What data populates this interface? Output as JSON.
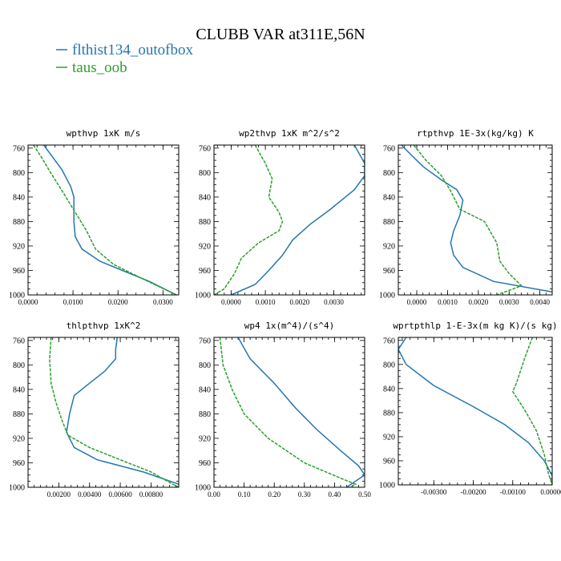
{
  "figure": {
    "title": "CLUBB VAR at311E,56N",
    "legend": [
      {
        "name": "flthist134_outofbox",
        "color": "#2576b0"
      },
      {
        "name": "taus_oob",
        "color": "#2aa02b"
      }
    ]
  },
  "chart_data": [
    {
      "type": "line",
      "title": "wpthvp   1xK m/s",
      "y_axis": "pressure (inverted)",
      "ylim": [
        1000,
        755
      ],
      "xlim": [
        0.0,
        0.0335
      ],
      "xticks": [
        0.0,
        0.01,
        0.02,
        0.03
      ],
      "xtick_labels": [
        "0.0000",
        "0.0100",
        "0.0200",
        "0.0300"
      ],
      "yticks": [
        760,
        800,
        840,
        880,
        920,
        960,
        1000
      ],
      "series": [
        {
          "name": "flthist134_outofbox",
          "color": "#2576b0",
          "dash": "solid",
          "points": [
            [
              0.0035,
              755
            ],
            [
              0.0055,
              775
            ],
            [
              0.0075,
              795
            ],
            [
              0.0095,
              823
            ],
            [
              0.0102,
              840
            ],
            [
              0.0102,
              880
            ],
            [
              0.0105,
              905
            ],
            [
              0.012,
              925
            ],
            [
              0.016,
              945
            ],
            [
              0.021,
              960
            ],
            [
              0.027,
              978
            ],
            [
              0.033,
              1000
            ]
          ]
        },
        {
          "name": "taus_oob",
          "color": "#2aa02b",
          "dash": "dashed",
          "points": [
            [
              0.0012,
              755
            ],
            [
              0.003,
              775
            ],
            [
              0.005,
              800
            ],
            [
              0.008,
              835
            ],
            [
              0.0105,
              865
            ],
            [
              0.013,
              895
            ],
            [
              0.015,
              925
            ],
            [
              0.019,
              950
            ],
            [
              0.025,
              972
            ],
            [
              0.033,
              1000
            ]
          ]
        }
      ]
    },
    {
      "type": "line",
      "title": "wp2thvp   1xK m^2/s^2",
      "y_axis": "pressure (inverted)",
      "ylim": [
        1000,
        755
      ],
      "xlim": [
        -0.0005,
        0.0039
      ],
      "xticks": [
        0.0,
        0.001,
        0.002,
        0.003
      ],
      "xtick_labels": [
        "0.0000",
        "0.0010",
        "0.0020",
        "0.0030"
      ],
      "yticks": [
        760,
        800,
        840,
        880,
        920,
        960,
        1000
      ],
      "series": [
        {
          "name": "flthist134_outofbox",
          "color": "#2576b0",
          "dash": "solid",
          "points": [
            [
              0.0036,
              755
            ],
            [
              0.0039,
              785
            ],
            [
              0.0039,
              805
            ],
            [
              0.0036,
              828
            ],
            [
              0.0029,
              860
            ],
            [
              0.0023,
              885
            ],
            [
              0.0018,
              910
            ],
            [
              0.0015,
              935
            ],
            [
              0.0011,
              960
            ],
            [
              0.0007,
              983
            ],
            [
              0.0,
              1000
            ]
          ]
        },
        {
          "name": "taus_oob",
          "color": "#2aa02b",
          "dash": "dashed",
          "points": [
            [
              0.0007,
              755
            ],
            [
              0.001,
              785
            ],
            [
              0.0012,
              810
            ],
            [
              0.0011,
              840
            ],
            [
              0.0014,
              865
            ],
            [
              0.0015,
              880
            ],
            [
              0.0014,
              895
            ],
            [
              0.0008,
              915
            ],
            [
              0.0003,
              940
            ],
            [
              0.0001,
              965
            ],
            [
              -0.0002,
              990
            ],
            [
              -0.0005,
              1000
            ]
          ]
        }
      ]
    },
    {
      "type": "line",
      "title": "rtpthvp   1E-3x(kg/kg) K",
      "y_axis": "pressure (inverted)",
      "ylim": [
        1000,
        755
      ],
      "xlim": [
        -0.0006,
        0.0044
      ],
      "xticks": [
        0.0,
        0.001,
        0.002,
        0.003,
        0.004
      ],
      "xtick_labels": [
        "0.0000",
        "0.0010",
        "0.0020",
        "0.0030",
        "0.0040"
      ],
      "yticks": [
        760,
        800,
        840,
        880,
        920,
        960,
        1000
      ],
      "series": [
        {
          "name": "flthist134_outofbox",
          "color": "#2576b0",
          "dash": "solid",
          "points": [
            [
              -0.0005,
              755
            ],
            [
              0.0002,
              790
            ],
            [
              0.0008,
              812
            ],
            [
              0.0013,
              828
            ],
            [
              0.0015,
              845
            ],
            [
              0.0014,
              870
            ],
            [
              0.0012,
              895
            ],
            [
              0.0011,
              915
            ],
            [
              0.0012,
              935
            ],
            [
              0.0015,
              955
            ],
            [
              0.0025,
              978
            ],
            [
              0.0044,
              995
            ]
          ]
        },
        {
          "name": "taus_oob",
          "color": "#2aa02b",
          "dash": "dashed",
          "points": [
            [
              -0.0001,
              755
            ],
            [
              0.0003,
              780
            ],
            [
              0.0008,
              805
            ],
            [
              0.0011,
              830
            ],
            [
              0.0014,
              860
            ],
            [
              0.0022,
              880
            ],
            [
              0.0026,
              915
            ],
            [
              0.0027,
              945
            ],
            [
              0.003,
              965
            ],
            [
              0.0034,
              985
            ],
            [
              0.0026,
              1000
            ]
          ]
        }
      ]
    },
    {
      "type": "line",
      "title": "thlpthvp   1xK^2",
      "y_axis": "pressure (inverted)",
      "ylim": [
        1000,
        755
      ],
      "xlim": [
        0.0,
        0.0098
      ],
      "xticks": [
        0.002,
        0.004,
        0.006,
        0.008
      ],
      "xtick_labels": [
        "0.00200",
        "0.00400",
        "0.00600",
        "0.00800"
      ],
      "yticks": [
        760,
        800,
        840,
        880,
        920,
        960,
        1000
      ],
      "series": [
        {
          "name": "flthist134_outofbox",
          "color": "#2576b0",
          "dash": "solid",
          "points": [
            [
              0.0058,
              755
            ],
            [
              0.0057,
              775
            ],
            [
              0.0057,
              790
            ],
            [
              0.005,
              810
            ],
            [
              0.004,
              830
            ],
            [
              0.003,
              850
            ],
            [
              0.0027,
              880
            ],
            [
              0.0025,
              910
            ],
            [
              0.003,
              935
            ],
            [
              0.0045,
              955
            ],
            [
              0.0075,
              975
            ],
            [
              0.0098,
              995
            ]
          ]
        },
        {
          "name": "taus_oob",
          "color": "#2aa02b",
          "dash": "dashed",
          "points": [
            [
              0.0015,
              755
            ],
            [
              0.0014,
              790
            ],
            [
              0.0015,
              830
            ],
            [
              0.0018,
              860
            ],
            [
              0.0022,
              890
            ],
            [
              0.0026,
              915
            ],
            [
              0.004,
              935
            ],
            [
              0.006,
              955
            ],
            [
              0.008,
              975
            ],
            [
              0.0092,
              992
            ],
            [
              0.0098,
              1000
            ]
          ]
        }
      ]
    },
    {
      "type": "line",
      "title": "wp4   1x(m^4)/(s^4)",
      "y_axis": "pressure (inverted)",
      "ylim": [
        1000,
        755
      ],
      "xlim": [
        0.0,
        0.5
      ],
      "xticks": [
        0.0,
        0.1,
        0.2,
        0.3,
        0.4,
        0.5
      ],
      "xtick_labels": [
        "0.00",
        "0.10",
        "0.20",
        "0.30",
        "0.40",
        "0.50"
      ],
      "yticks": [
        760,
        800,
        840,
        880,
        920,
        960,
        1000
      ],
      "series": [
        {
          "name": "flthist134_outofbox",
          "color": "#2576b0",
          "dash": "solid",
          "points": [
            [
              0.08,
              755
            ],
            [
              0.12,
              790
            ],
            [
              0.2,
              830
            ],
            [
              0.27,
              870
            ],
            [
              0.34,
              905
            ],
            [
              0.42,
              940
            ],
            [
              0.48,
              965
            ],
            [
              0.5,
              980
            ],
            [
              0.44,
              1000
            ]
          ]
        },
        {
          "name": "taus_oob",
          "color": "#2aa02b",
          "dash": "dashed",
          "points": [
            [
              0.02,
              755
            ],
            [
              0.03,
              800
            ],
            [
              0.06,
              840
            ],
            [
              0.1,
              880
            ],
            [
              0.18,
              920
            ],
            [
              0.3,
              960
            ],
            [
              0.42,
              985
            ],
            [
              0.47,
              995
            ],
            [
              0.45,
              1000
            ]
          ]
        }
      ]
    },
    {
      "type": "line",
      "title": "wprtpthlp   1-E-3x(m kg K)/(s kg)",
      "y_axis": "pressure (inverted)",
      "ylim": [
        1000,
        755
      ],
      "xlim": [
        -0.0039,
        0.0
      ],
      "xticks": [
        -0.003,
        -0.002,
        -0.001,
        0.0
      ],
      "xtick_labels": [
        "-0.00300",
        "-0.00200",
        "-0.00100",
        "0.00000"
      ],
      "yticks": [
        760,
        800,
        840,
        880,
        920,
        960,
        1000
      ],
      "series": [
        {
          "name": "flthist134_outofbox",
          "color": "#2576b0",
          "dash": "solid",
          "points": [
            [
              -0.0037,
              755
            ],
            [
              -0.0039,
              775
            ],
            [
              -0.0037,
              800
            ],
            [
              -0.003,
              835
            ],
            [
              -0.002,
              870
            ],
            [
              -0.0012,
              900
            ],
            [
              -0.0006,
              930
            ],
            [
              -0.0002,
              960
            ],
            [
              0.0,
              985
            ],
            [
              0.0,
              1000
            ]
          ]
        },
        {
          "name": "taus_oob",
          "color": "#2aa02b",
          "dash": "dashed",
          "points": [
            [
              -0.0005,
              755
            ],
            [
              -0.0007,
              790
            ],
            [
              -0.0009,
              830
            ],
            [
              -0.001,
              845
            ],
            [
              -0.0007,
              875
            ],
            [
              -0.0004,
              910
            ],
            [
              -0.0002,
              950
            ],
            [
              -0.0001,
              980
            ],
            [
              0.0,
              1000
            ]
          ]
        }
      ]
    }
  ]
}
